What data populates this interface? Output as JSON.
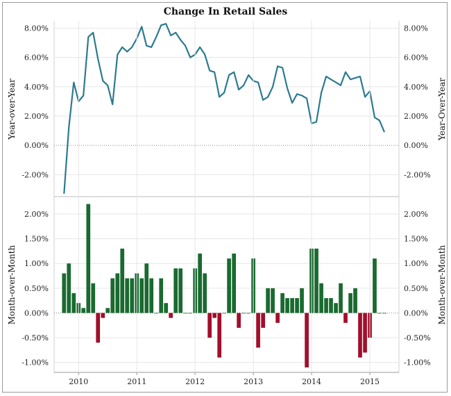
{
  "title": "Change In Retail Sales",
  "colors": {
    "line": "#2b7a8f",
    "bar_positive": "#1a6a30",
    "bar_negative": "#a10f2b",
    "grid": "#e6e6e6",
    "zero_line": "#888888",
    "frame": "#9a9a9a"
  },
  "chart_data": [
    {
      "type": "line",
      "ylabel_left": "Year-over-Year",
      "ylabel_right": "Year-Over-Year",
      "ylim": [
        -3.5,
        8.5
      ],
      "yticks": [
        8,
        6,
        4,
        2,
        0,
        -2
      ],
      "ytick_labels": [
        "8.00%",
        "6.00%",
        "4.00%",
        "2.00%",
        "0.00%",
        "-2.00%"
      ],
      "grid": true,
      "series": [
        {
          "x": [
            2009.75,
            2009.833,
            2009.917,
            2010.0,
            2010.083,
            2010.167,
            2010.25,
            2010.333,
            2010.417,
            2010.5,
            2010.583,
            2010.667,
            2010.75,
            2010.833,
            2010.917,
            2011.0,
            2011.083,
            2011.167,
            2011.25,
            2011.333,
            2011.417,
            2011.5,
            2011.583,
            2011.667,
            2011.75,
            2011.833,
            2011.917,
            2012.0,
            2012.083,
            2012.167,
            2012.25,
            2012.333,
            2012.417,
            2012.5,
            2012.583,
            2012.667,
            2012.75,
            2012.833,
            2012.917,
            2013.0,
            2013.083,
            2013.167,
            2013.25,
            2013.333,
            2013.417,
            2013.5,
            2013.583,
            2013.667,
            2013.75,
            2013.833,
            2013.917,
            2014.0,
            2014.083,
            2014.167,
            2014.25,
            2014.333,
            2014.417,
            2014.5,
            2014.583,
            2014.667,
            2014.75,
            2014.833,
            2014.917,
            2015.0,
            2015.083,
            2015.167,
            2015.25
          ],
          "values": [
            -3.3,
            1.2,
            4.3,
            3.0,
            3.4,
            7.4,
            7.7,
            5.9,
            4.4,
            4.1,
            2.8,
            6.2,
            6.7,
            6.4,
            6.7,
            7.3,
            8.1,
            6.8,
            6.7,
            7.4,
            8.2,
            8.3,
            7.5,
            7.7,
            7.2,
            6.8,
            6.0,
            6.2,
            6.7,
            6.2,
            5.1,
            5.0,
            3.3,
            3.6,
            4.8,
            5.0,
            3.8,
            4.1,
            4.8,
            4.4,
            4.3,
            3.1,
            3.3,
            4.0,
            5.4,
            5.3,
            3.9,
            2.9,
            3.5,
            3.4,
            3.2,
            1.5,
            1.6,
            3.6,
            4.7,
            4.5,
            4.3,
            4.1,
            5.0,
            4.5,
            4.6,
            4.7,
            3.3,
            3.7,
            1.9,
            1.7,
            0.9
          ]
        }
      ]
    },
    {
      "type": "bar",
      "ylabel_left": "Month-over-Month",
      "ylabel_right": "Month-over-Month",
      "ylim": [
        -1.2,
        2.35
      ],
      "yticks": [
        2.0,
        1.5,
        1.0,
        0.5,
        0.0,
        -0.5,
        -1.0
      ],
      "ytick_labels": [
        "2.00%",
        "1.50%",
        "1.00%",
        "0.50%",
        "0.00%",
        "-0.50%",
        "-1.00%"
      ],
      "grid": true,
      "series": [
        {
          "x": [
            2009.75,
            2009.833,
            2009.917,
            2010.0,
            2010.083,
            2010.167,
            2010.25,
            2010.333,
            2010.417,
            2010.5,
            2010.583,
            2010.667,
            2010.75,
            2010.833,
            2010.917,
            2011.0,
            2011.083,
            2011.167,
            2011.25,
            2011.333,
            2011.417,
            2011.5,
            2011.583,
            2011.667,
            2011.75,
            2011.833,
            2011.917,
            2012.0,
            2012.083,
            2012.167,
            2012.25,
            2012.333,
            2012.417,
            2012.5,
            2012.583,
            2012.667,
            2012.75,
            2012.833,
            2012.917,
            2013.0,
            2013.083,
            2013.167,
            2013.25,
            2013.333,
            2013.417,
            2013.5,
            2013.583,
            2013.667,
            2013.75,
            2013.833,
            2013.917,
            2014.0,
            2014.083,
            2014.167,
            2014.25,
            2014.333,
            2014.417,
            2014.5,
            2014.583,
            2014.667,
            2014.75,
            2014.833,
            2014.917,
            2015.0,
            2015.083,
            2015.167,
            2015.25
          ],
          "values": [
            0.8,
            1.0,
            0.4,
            0.2,
            0.1,
            2.2,
            0.6,
            -0.6,
            -0.1,
            0.1,
            0.7,
            0.8,
            1.3,
            0.7,
            0.7,
            0.8,
            0.7,
            1.0,
            0.7,
            0.0,
            0.7,
            0.2,
            -0.1,
            0.9,
            0.9,
            0.0,
            0.0,
            0.9,
            1.2,
            0.8,
            -0.5,
            -0.1,
            -0.9,
            0.0,
            1.1,
            1.2,
            -0.3,
            0.0,
            0.0,
            1.1,
            -0.7,
            -0.3,
            0.5,
            0.5,
            -0.2,
            0.4,
            0.3,
            0.3,
            0.3,
            0.5,
            -1.1,
            1.3,
            1.3,
            0.6,
            0.3,
            0.3,
            0.2,
            0.6,
            -0.2,
            0.4,
            0.5,
            -0.9,
            -0.8,
            -0.5,
            1.1,
            0.0,
            0.0
          ]
        }
      ]
    }
  ],
  "x_axis": {
    "tick_labels": [
      "2010",
      "2011",
      "2012",
      "2013",
      "2014",
      "2015"
    ],
    "tick_values": [
      2010,
      2011,
      2012,
      2013,
      2014,
      2015
    ]
  }
}
